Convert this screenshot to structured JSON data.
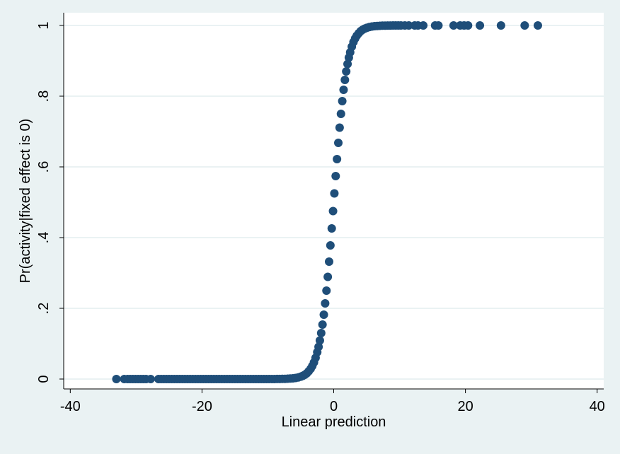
{
  "chart_data": {
    "type": "scatter",
    "title": "",
    "xlabel": "Linear prediction",
    "ylabel": "Pr(activity|fixed effect is 0)",
    "xlim": [
      -41,
      41
    ],
    "ylim": [
      0,
      1
    ],
    "xticks": [
      -40,
      -20,
      0,
      20,
      40
    ],
    "xtick_labels": [
      "-40",
      "-20",
      "0",
      "20",
      "40"
    ],
    "yticks": [
      0,
      0.2,
      0.4,
      0.6,
      0.8,
      1
    ],
    "ytick_labels": [
      "0",
      ".2",
      ".4",
      ".6",
      ".8",
      "1"
    ],
    "grid": true,
    "legend": "none",
    "marker_color": "#1f4e79",
    "background_color": "#eaf2f3",
    "plot_area_color": "#ffffff",
    "grid_color": "#eaf2f3",
    "series": [
      {
        "x": [
          -33,
          -31.8,
          -31.3,
          -30.9,
          -30.5,
          -30.1,
          -29.7,
          -29.3,
          -28.9,
          -28.5,
          -27.8,
          -26.6,
          -26.2,
          -25.8,
          -25.4,
          -25,
          -24.6,
          -24.2,
          -23.8,
          -23.4,
          -23,
          -22.6,
          -22.2,
          -21.8,
          -21.4,
          -21,
          -20.6,
          -20.2,
          -19.8,
          -19.4,
          -19,
          -18.6,
          -18.2,
          -17.8,
          -17.4,
          -17,
          -16.6,
          -16.2,
          -15.8,
          -15.4,
          -15,
          -14.6,
          -14.2,
          -13.8,
          -13.4,
          -13,
          -12.6,
          -12.2,
          -11.8,
          -11.4,
          -11,
          -10.6,
          -10.2,
          -9.8,
          -9.4,
          -9,
          -8.6,
          -8.2,
          -7.8,
          -7.4,
          -7,
          -6.6,
          -6.2,
          -5.8,
          -5.4,
          -5,
          -4.7,
          -4.4,
          -4.1,
          -3.8,
          -3.5,
          -3.25,
          -3,
          -2.75,
          -2.5,
          -2.3,
          -2.1,
          -1.9,
          -1.7,
          -1.5,
          -1.3,
          -1.1,
          -0.9,
          -0.7,
          -0.5,
          -0.3,
          -0.1,
          0.1,
          0.3,
          0.5,
          0.7,
          0.9,
          1.1,
          1.3,
          1.5,
          1.7,
          1.9,
          2.1,
          2.3,
          2.5,
          2.75,
          3,
          3.25,
          3.5,
          3.8,
          4.1,
          4.4,
          4.7,
          5,
          5.4,
          5.8,
          6.2,
          6.6,
          7,
          7.4,
          7.8,
          8.2,
          8.6,
          9,
          9.4,
          9.8,
          10.2,
          10.8,
          11.4,
          12.3,
          12.8,
          13.6,
          15.4,
          15.9,
          18.2,
          19.2,
          19.8,
          20.4,
          22.2,
          25.4,
          29,
          31
        ],
        "y": [
          0,
          0,
          0,
          0,
          0,
          0,
          0,
          0,
          0,
          0,
          0,
          0,
          0,
          0,
          0,
          0,
          0,
          0,
          0,
          0,
          0,
          0,
          0,
          0,
          0,
          0,
          0,
          0,
          0,
          0,
          0,
          0,
          0,
          0,
          0,
          0,
          0,
          0,
          0,
          0,
          0,
          0,
          0,
          0,
          0,
          0,
          0,
          0,
          0,
          0,
          0,
          0,
          0.0001,
          0.0001,
          0.0001,
          0.0001,
          0.0002,
          0.0003,
          0.0004,
          0.0006,
          0.0009,
          0.0014,
          0.002,
          0.003,
          0.0045,
          0.0067,
          0.009,
          0.012,
          0.016,
          0.022,
          0.029,
          0.037,
          0.047,
          0.06,
          0.076,
          0.091,
          0.109,
          0.13,
          0.154,
          0.182,
          0.214,
          0.25,
          0.289,
          0.332,
          0.378,
          0.426,
          0.475,
          0.525,
          0.574,
          0.622,
          0.668,
          0.711,
          0.75,
          0.786,
          0.818,
          0.846,
          0.87,
          0.891,
          0.909,
          0.924,
          0.94,
          0.953,
          0.963,
          0.971,
          0.978,
          0.984,
          0.988,
          0.991,
          0.9933,
          0.9955,
          0.997,
          0.998,
          0.9986,
          0.9991,
          0.9994,
          0.9996,
          0.9997,
          0.9998,
          0.9999,
          0.9999,
          0.9999,
          1,
          1,
          1,
          1,
          1,
          1,
          1,
          1,
          1,
          1,
          1,
          1,
          1,
          1,
          1,
          1
        ]
      }
    ]
  }
}
